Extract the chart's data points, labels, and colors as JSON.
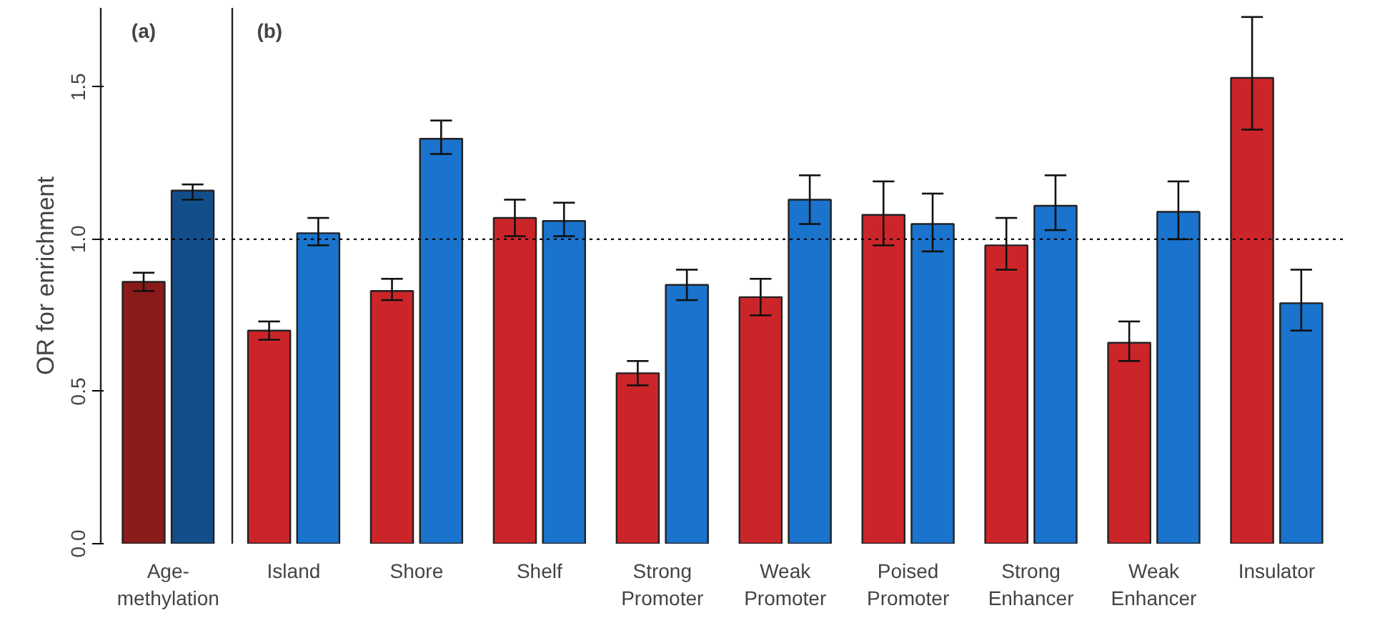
{
  "chart_data": [
    {
      "type": "bar",
      "title": "(a)",
      "ylabel": "OR for enrichment",
      "categories": [
        "Age-\nmethylation"
      ],
      "series": [
        {
          "colors": [
            "#8b1a1a"
          ],
          "values": [
            0.86
          ],
          "errors": [
            [
              0.83,
              0.89
            ]
          ]
        },
        {
          "colors": [
            "#124e8a"
          ],
          "values": [
            1.16
          ],
          "errors": [
            [
              1.13,
              1.18
            ]
          ]
        }
      ],
      "ylim": [
        0,
        1.76
      ],
      "yticks": [
        {
          "value": 0,
          "label": "0.0"
        },
        {
          "value": 0.5,
          "label": "0.5"
        },
        {
          "value": 1.0,
          "label": "1.0"
        },
        {
          "value": 1.5,
          "label": "1.5"
        }
      ],
      "ref_lines": [
        {
          "axis": "y",
          "value": 1.0,
          "line_style": "dotted",
          "color": "#000000"
        }
      ],
      "grid": false
    },
    {
      "type": "bar",
      "title": "(b)",
      "categories": [
        "Island",
        "Shore",
        "Shelf",
        "Strong\nPromoter",
        "Weak\nPromoter",
        "Poised\nPromoter",
        "Strong\nEnhancer",
        "Weak\nEnhancer",
        "Insulator"
      ],
      "series": [
        {
          "colors": [
            "#cc2529",
            "#cc2529",
            "#cc2529",
            "#cc2529",
            "#cc2529",
            "#cc2529",
            "#cc2529",
            "#cc2529",
            "#cc2529"
          ],
          "values": [
            0.7,
            0.83,
            1.07,
            0.56,
            0.81,
            1.08,
            0.98,
            0.66,
            1.53
          ],
          "errors": [
            [
              0.67,
              0.73
            ],
            [
              0.8,
              0.87
            ],
            [
              1.01,
              1.13
            ],
            [
              0.52,
              0.6
            ],
            [
              0.75,
              0.87
            ],
            [
              0.98,
              1.19
            ],
            [
              0.9,
              1.07
            ],
            [
              0.6,
              0.73
            ],
            [
              1.36,
              1.73
            ]
          ]
        },
        {
          "colors": [
            "#1a73cc",
            "#1a73cc",
            "#1a73cc",
            "#1a73cc",
            "#1a73cc",
            "#1a73cc",
            "#1a73cc",
            "#1a73cc",
            "#1a73cc"
          ],
          "values": [
            1.02,
            1.33,
            1.06,
            0.85,
            1.13,
            1.05,
            1.11,
            1.09,
            0.79
          ],
          "errors": [
            [
              0.98,
              1.07
            ],
            [
              1.28,
              1.39
            ],
            [
              1.01,
              1.12
            ],
            [
              0.8,
              0.9
            ],
            [
              1.05,
              1.21
            ],
            [
              0.96,
              1.15
            ],
            [
              1.03,
              1.21
            ],
            [
              1.0,
              1.19
            ],
            [
              0.7,
              0.9
            ]
          ]
        }
      ],
      "ylim": [
        0,
        1.76
      ],
      "tick_labels": "x",
      "ref_lines": [
        {
          "axis": "y",
          "value": 1.0,
          "line_style": "dotted",
          "color": "#000000"
        }
      ],
      "grid": false
    }
  ]
}
